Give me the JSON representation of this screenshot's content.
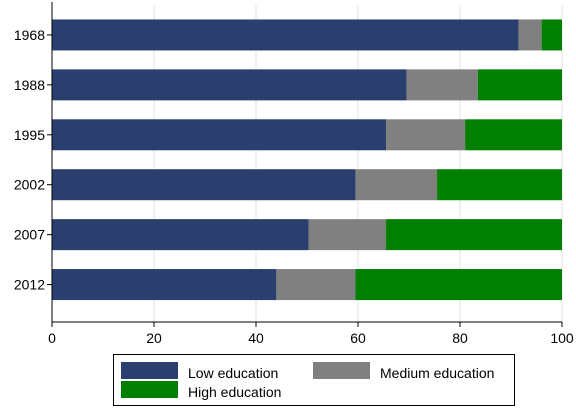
{
  "chart_data": {
    "type": "bar",
    "orientation": "horizontal",
    "stacked": true,
    "categories": [
      "1968",
      "1988",
      "1995",
      "2002",
      "2007",
      "2012"
    ],
    "series": [
      {
        "name": "Low education",
        "color": "#2b3f6e",
        "values": [
          91.5,
          69.5,
          65.5,
          59.5,
          50.3,
          44.0
        ]
      },
      {
        "name": "Medium education",
        "color": "#808080",
        "values": [
          4.5,
          14.0,
          15.5,
          16.0,
          15.2,
          15.5
        ]
      },
      {
        "name": "High education",
        "color": "#008000",
        "values": [
          4.0,
          16.5,
          19.0,
          24.5,
          34.5,
          40.5
        ]
      }
    ],
    "xlim": [
      0,
      100
    ],
    "xticks": [
      "0",
      "20",
      "40",
      "60",
      "80",
      "100"
    ],
    "grid": true,
    "legend_position": "bottom"
  }
}
